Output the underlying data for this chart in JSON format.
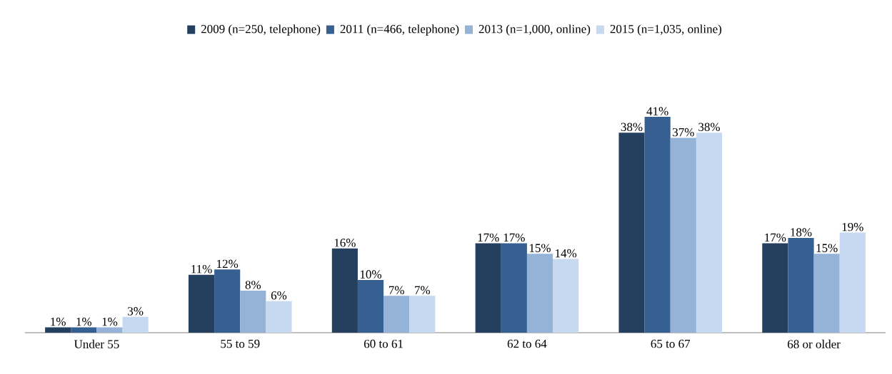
{
  "chart_data": {
    "type": "bar",
    "categories": [
      "Under 55",
      "55 to 59",
      "60 to 61",
      "62 to 64",
      "65 to 67",
      "68 or older"
    ],
    "series": [
      {
        "name": "2009 (n=250, telephone)",
        "color": "#253f5f",
        "values": [
          1,
          11,
          16,
          17,
          38,
          17
        ],
        "value_labels": [
          "1%",
          "11%",
          "16%",
          "17%",
          "38%",
          "17%"
        ]
      },
      {
        "name": "2011 (n=466, telephone)",
        "color": "#366092",
        "values": [
          1,
          12,
          10,
          17,
          41,
          18
        ],
        "value_labels": [
          "1%",
          "12%",
          "10%",
          "17%",
          "41%",
          "18%"
        ]
      },
      {
        "name": "2013 (n=1,000, online)",
        "color": "#95b3d7",
        "values": [
          1,
          8,
          7,
          15,
          37,
          15
        ],
        "value_labels": [
          "1%",
          "8%",
          "7%",
          "15%",
          "37%",
          "15%"
        ]
      },
      {
        "name": "2015 (n=1,035, online)",
        "color": "#c6d9f0",
        "values": [
          3,
          6,
          7,
          14,
          38,
          19
        ],
        "value_labels": [
          "3%",
          "6%",
          "7%",
          "14%",
          "38%",
          "19%"
        ]
      }
    ],
    "legend": "top"
  }
}
